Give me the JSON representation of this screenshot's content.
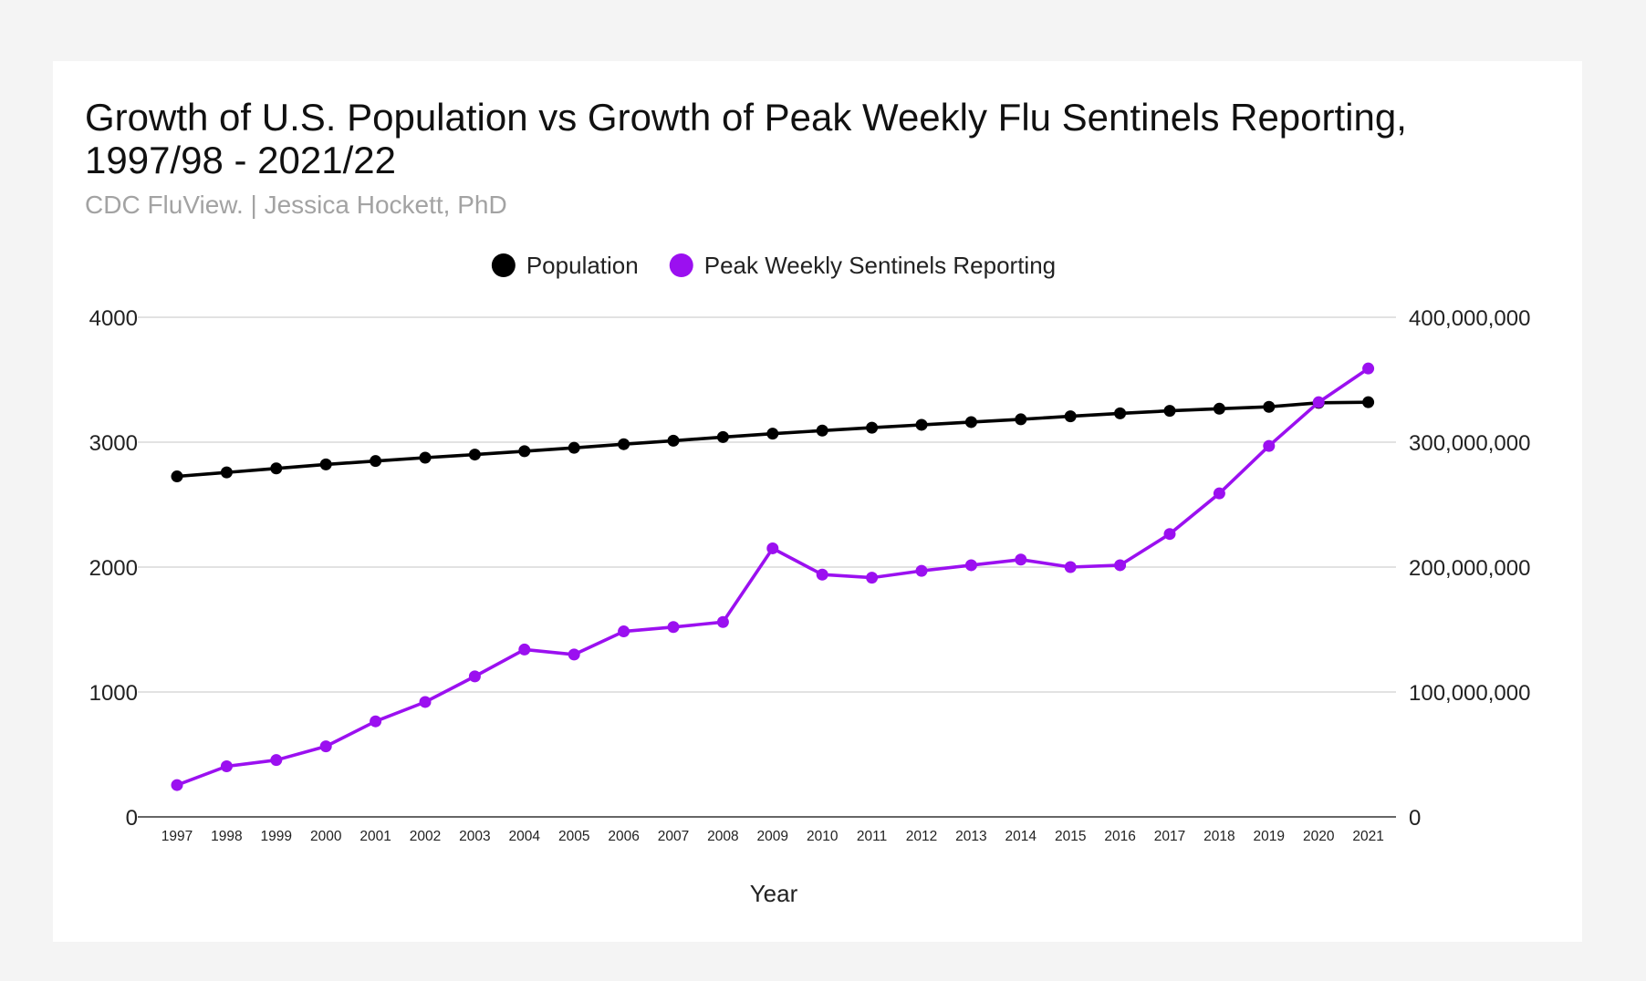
{
  "chart_data": {
    "type": "line",
    "title_line1": "Growth of U.S. Population vs Growth of Peak Weekly Flu Sentinels Reporting,",
    "title_line2": "1997/98 - 2021/22",
    "subtitle": "CDC FluView. | Jessica Hockett, PhD",
    "xlabel": "Year",
    "x": [
      "1997",
      "1998",
      "1999",
      "2000",
      "2001",
      "2002",
      "2003",
      "2004",
      "2005",
      "2006",
      "2007",
      "2008",
      "2009",
      "2010",
      "2011",
      "2012",
      "2013",
      "2014",
      "2015",
      "2016",
      "2017",
      "2018",
      "2019",
      "2020",
      "2021"
    ],
    "left_axis": {
      "ylim": [
        0,
        4000
      ],
      "ticks": [
        "0",
        "1000",
        "2000",
        "3000",
        "4000"
      ]
    },
    "right_axis": {
      "ylim": [
        0,
        400000000
      ],
      "ticks": [
        "0",
        "100,000,000",
        "200,000,000",
        "300,000,000",
        "400,000,000"
      ]
    },
    "legend_position": "top",
    "grid": true,
    "series": [
      {
        "name": "Population",
        "axis": "right",
        "color": "#000000",
        "values": [
          272600000,
          275800000,
          279000000,
          282200000,
          284900000,
          287600000,
          290100000,
          292800000,
          295500000,
          298400000,
          301200000,
          304100000,
          306800000,
          309300000,
          311600000,
          313900000,
          316100000,
          318300000,
          320700000,
          323100000,
          325100000,
          326800000,
          328300000,
          331500000,
          332000000
        ]
      },
      {
        "name": "Peak Weekly Sentinels Reporting",
        "axis": "left",
        "color": "#9b10f0",
        "values": [
          255,
          405,
          455,
          565,
          765,
          920,
          1125,
          1340,
          1300,
          1485,
          1520,
          1560,
          2150,
          1940,
          1915,
          1970,
          2015,
          2060,
          2000,
          2015,
          2265,
          2590,
          2970,
          3320,
          3590
        ]
      }
    ]
  }
}
